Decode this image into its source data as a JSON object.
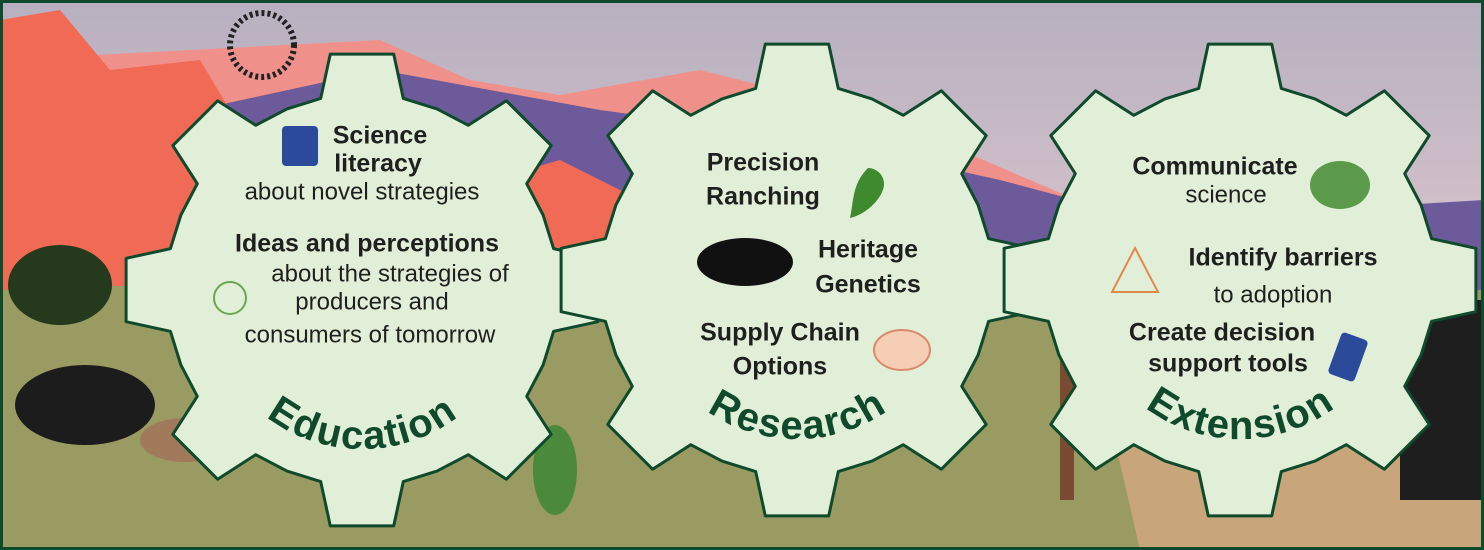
{
  "gears": [
    {
      "title": "Education",
      "items": [
        {
          "heading": [
            "Science",
            "literacy"
          ],
          "detail": [
            "about novel strategies"
          ]
        },
        {
          "heading": [
            "Ideas and perceptions"
          ],
          "detail": [
            "about the strategies of",
            "producers and",
            "consumers of tomorrow"
          ]
        }
      ]
    },
    {
      "title": "Research",
      "items": [
        {
          "heading": [
            "Precision",
            "Ranching"
          ]
        },
        {
          "heading": [
            "Heritage",
            "Genetics"
          ]
        },
        {
          "heading": [
            "Supply Chain",
            "Options"
          ]
        }
      ]
    },
    {
      "title": "Extension",
      "items": [
        {
          "heading": [
            "Communicate"
          ],
          "detail": [
            "science"
          ]
        },
        {
          "heading": [
            "Identify barriers"
          ],
          "detail": [
            "to adoption"
          ]
        },
        {
          "heading": [
            "Create decision",
            "support tools"
          ]
        }
      ]
    }
  ]
}
